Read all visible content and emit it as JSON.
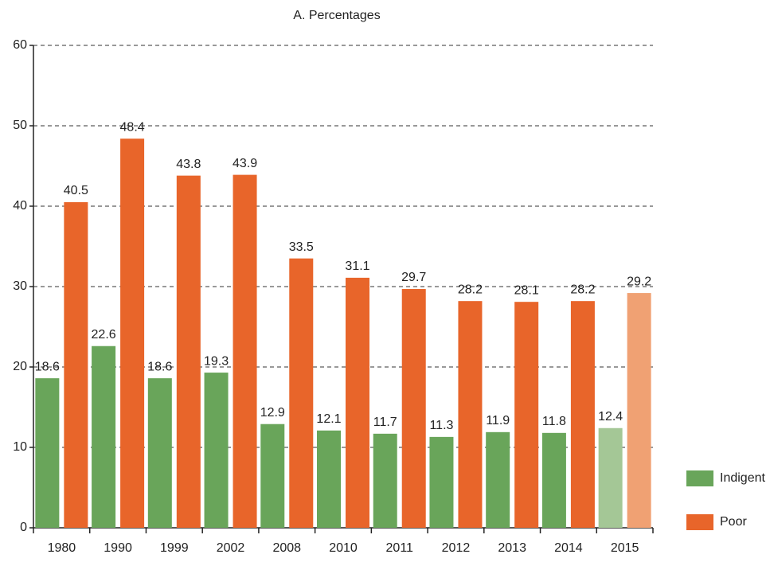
{
  "chart_data": {
    "type": "bar",
    "title": "A. Percentages",
    "categories": [
      "1980",
      "1990",
      "1999",
      "2002",
      "2008",
      "2010",
      "2011",
      "2012",
      "2013",
      "2014",
      "2015"
    ],
    "series": [
      {
        "name": "Indigent",
        "color": "#69a55a",
        "colors": [
          "#69a55a",
          "#69a55a",
          "#69a55a",
          "#69a55a",
          "#69a55a",
          "#69a55a",
          "#69a55a",
          "#69a55a",
          "#69a55a",
          "#69a55a",
          "#a4c796"
        ],
        "values": [
          18.6,
          22.6,
          18.6,
          19.3,
          12.9,
          12.1,
          11.7,
          11.3,
          11.9,
          11.8,
          12.4
        ]
      },
      {
        "name": "Poor",
        "color": "#e8652a",
        "colors": [
          "#e8652a",
          "#e8652a",
          "#e8652a",
          "#e8652a",
          "#e8652a",
          "#e8652a",
          "#e8652a",
          "#e8652a",
          "#e8652a",
          "#e8652a",
          "#f0a173"
        ],
        "values": [
          40.5,
          48.4,
          43.8,
          43.9,
          33.5,
          31.1,
          29.7,
          28.2,
          28.1,
          28.2,
          29.2
        ]
      }
    ],
    "ylim": [
      0,
      60
    ],
    "yticks": [
      0,
      10,
      20,
      30,
      40,
      50,
      60
    ],
    "grid": true,
    "legend": "right"
  }
}
